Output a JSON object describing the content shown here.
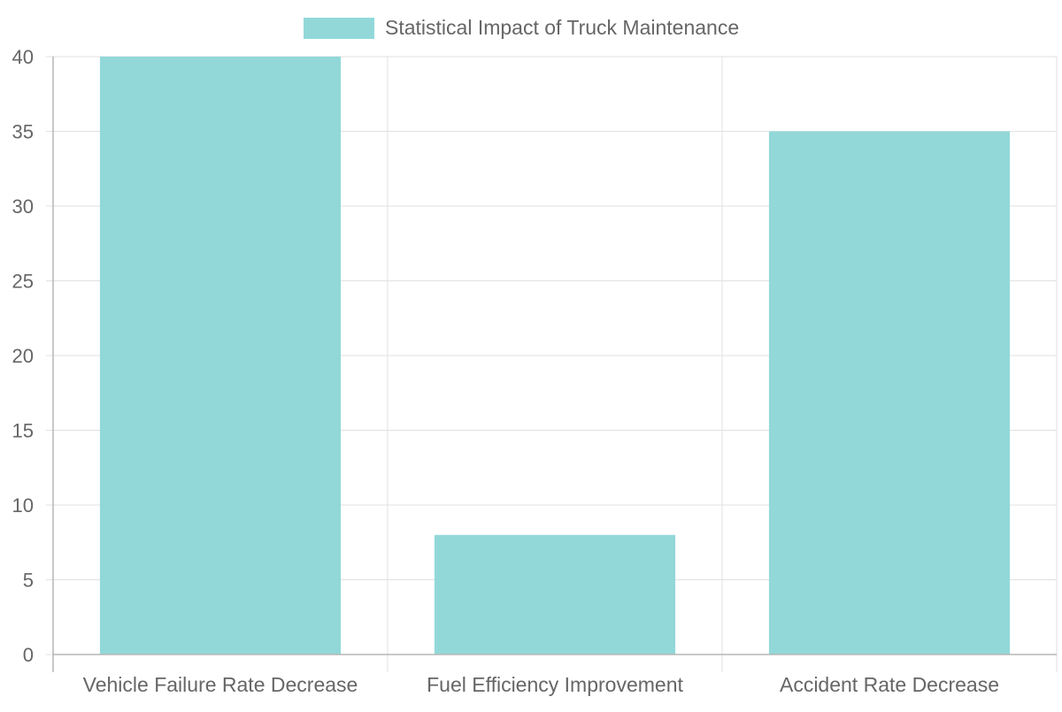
{
  "chart_data": {
    "type": "bar",
    "categories": [
      "Vehicle Failure Rate Decrease",
      "Fuel Efficiency Improvement",
      "Accident Rate Decrease"
    ],
    "series": [
      {
        "name": "Statistical Impact of Truck Maintenance",
        "values": [
          40,
          8,
          35
        ],
        "color": "#92d8d9"
      }
    ],
    "ylim": [
      0,
      40
    ],
    "yticks": [
      0,
      5,
      10,
      15,
      20,
      25,
      30,
      35,
      40
    ],
    "grid": true,
    "legend": "top-center"
  },
  "colors": {
    "grid": "#e1e1e1",
    "axis": "#b5b5b5",
    "text": "#666666",
    "bar": "#92d8d9"
  }
}
